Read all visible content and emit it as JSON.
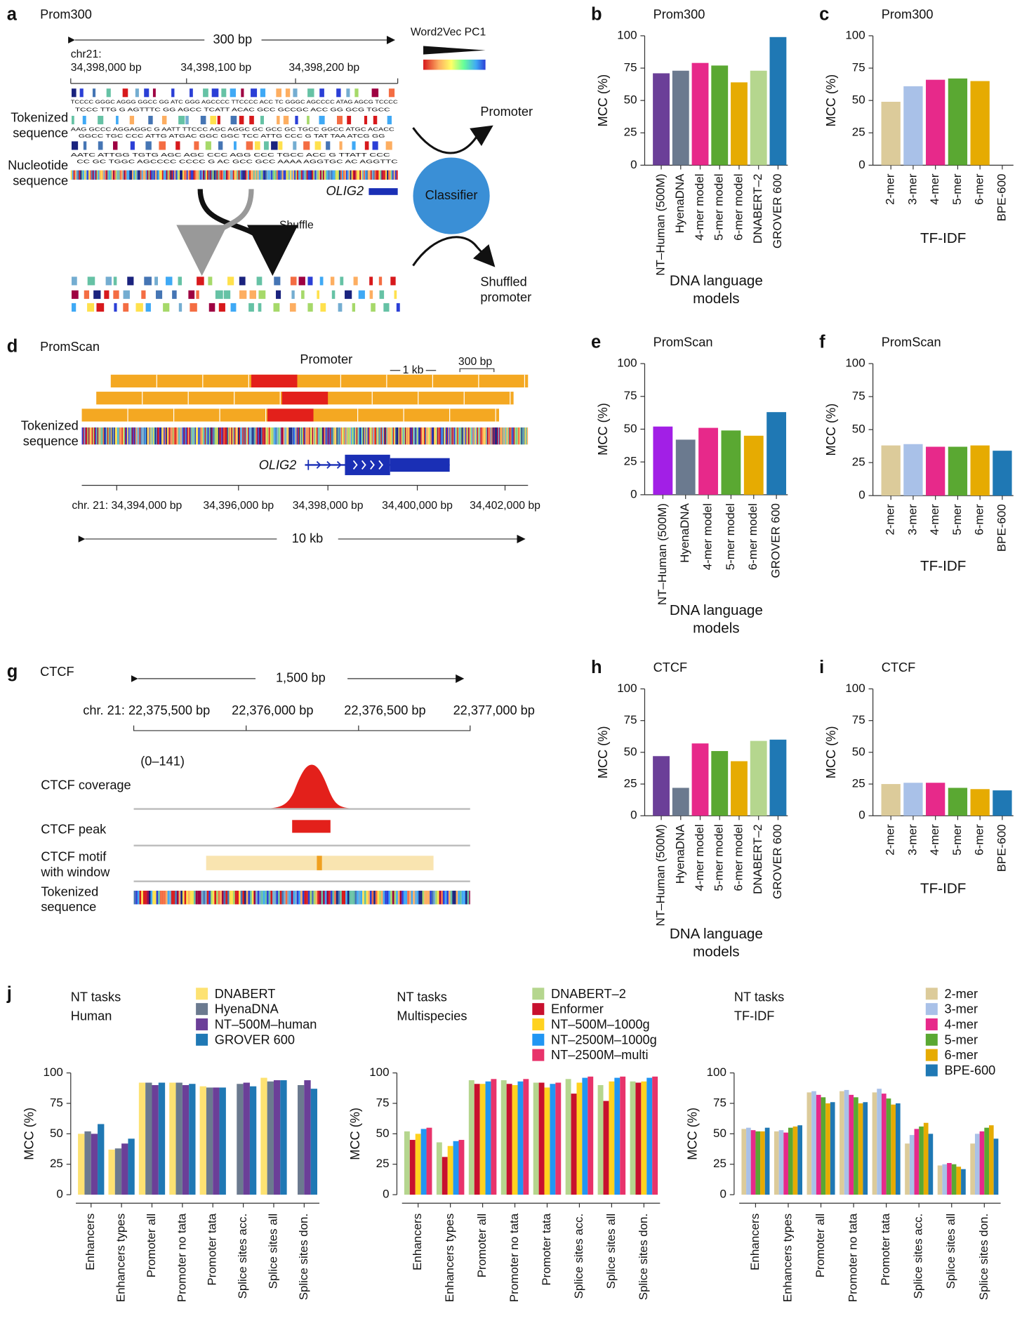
{
  "diagrams": {
    "a": {
      "panel": "a",
      "title": "Prom300",
      "length": "300 bp",
      "colorbar": "Word2Vec PC1",
      "chrom": "chr21:",
      "ticks": [
        "34,398,000 bp",
        "34,398,100 bp",
        "34,398,200 bp"
      ],
      "tokenized": "Tokenized sequence",
      "nucleotide": "Nucleotide sequence",
      "token_rows": [
        "TCCCC GGGC AGGG GGCC GG ATC GGG AGCCCC TTCCCC ACC TC GGGC AGCCCC ATAG AGCG TCCCC",
        "TCCC TTG G AGTTTC GG AGCC TCATT ACAC GCC GCCGC ACC GG GCG TGCC",
        "AAG GCCC AGGAGGC G AATT TTCCC AGC AGGC GC GCC GC TGCC GGCC ATGC ACACC",
        "GGCC TGC CCC ATTG ATGAC GGC GGC TCC ATTG CCC G TAT TAA ATCG GG",
        "AATC ATTGG TGTG AGC AGC CCC AGG CCC TGCC ACC G TTATT CCC",
        "CC GC TGGC AGCCCC CCCC G AC GCC GCC AAAA AGGTGC AC AGGTTC"
      ],
      "gene": "OLIG2",
      "shuffle": "Shuffle",
      "classifier": "Classifier",
      "promoter": "Promoter",
      "shuffled": "Shuffled promoter"
    },
    "d": {
      "panel": "d",
      "title": "PromScan",
      "promoter": "Promoter",
      "kb": "1 kb",
      "bp": "300 bp",
      "tokenized": "Tokenized sequence",
      "gene": "OLIG2",
      "ticks": [
        "chr. 21: 34,394,000 bp",
        "34,396,000 bp",
        "34,398,000 bp",
        "34,400,000 bp",
        "34,402,000 bp"
      ],
      "length": "10 kb"
    },
    "g": {
      "panel": "g",
      "title": "CTCF",
      "length": "1,500 bp",
      "ticks": [
        "chr. 21: 22,375,500 bp",
        "22,376,000 bp",
        "22,376,500 bp",
        "22,377,000 bp"
      ],
      "range": "(0–141)",
      "coverage": "CTCF coverage",
      "peak": "CTCF peak",
      "motif": "CTCF motif with window",
      "tokenized": "Tokenized sequence"
    }
  },
  "chart_data": [
    {
      "type": "bar",
      "panel": "b",
      "title": "Prom300",
      "categories": [
        "NT–Human (500M)",
        "HyenaDNA",
        "4-mer model",
        "5-mer model",
        "6-mer model",
        "DNABERT–2",
        "GROVER 600"
      ],
      "values": [
        71,
        73,
        79,
        77,
        64,
        73,
        99
      ],
      "colors": [
        "#6b3f98",
        "#6b7a8f",
        "#e7298a",
        "#5aa832",
        "#e6ab02",
        "#b5d68e",
        "#1f78b4"
      ],
      "xlabel": "DNA language models",
      "ylabel": "MCC (%)",
      "ylim": [
        0,
        100
      ],
      "yticks": [
        0,
        25,
        50,
        75,
        100
      ]
    },
    {
      "type": "bar",
      "panel": "c",
      "title": "Prom300",
      "categories": [
        "2-mer",
        "3-mer",
        "4-mer",
        "5-mer",
        "6-mer",
        "BPE-600"
      ],
      "values": [
        49,
        61,
        66,
        67,
        65,
        0
      ],
      "colors": [
        "#dccb9a",
        "#a9c1e8",
        "#e7298a",
        "#5aa832",
        "#e6ab02",
        "#1f78b4"
      ],
      "xlabel": "TF-IDF",
      "ylabel": "MCC (%)",
      "ylim": [
        0,
        100
      ],
      "yticks": [
        0,
        25,
        50,
        75,
        100
      ]
    },
    {
      "type": "bar",
      "panel": "e",
      "title": "PromScan",
      "categories": [
        "NT–Human (500M)",
        "HyenaDNA",
        "4-mer model",
        "5-mer model",
        "6-mer model",
        "GROVER 600"
      ],
      "values": [
        52,
        42,
        51,
        49,
        45,
        63
      ],
      "colors": [
        "#a21fe6",
        "#6b7a8f",
        "#e7298a",
        "#5aa832",
        "#e6ab02",
        "#1f78b4"
      ],
      "xlabel": "DNA language models",
      "ylabel": "MCC (%)",
      "ylim": [
        0,
        100
      ],
      "yticks": [
        0,
        25,
        50,
        75,
        100
      ]
    },
    {
      "type": "bar",
      "panel": "f",
      "title": "PromScan",
      "categories": [
        "2-mer",
        "3-mer",
        "4-mer",
        "5-mer",
        "6-mer",
        "BPE-600"
      ],
      "values": [
        38,
        39,
        37,
        37,
        38,
        34
      ],
      "colors": [
        "#dccb9a",
        "#a9c1e8",
        "#e7298a",
        "#5aa832",
        "#e6ab02",
        "#1f78b4"
      ],
      "xlabel": "TF-IDF",
      "ylabel": "MCC (%)",
      "ylim": [
        0,
        100
      ],
      "yticks": [
        0,
        25,
        50,
        75,
        100
      ]
    },
    {
      "type": "bar",
      "panel": "h",
      "title": "CTCF",
      "categories": [
        "NT–Human (500M)",
        "HyenaDNA",
        "4-mer model",
        "5-mer model",
        "6-mer model",
        "DNABERT–2",
        "GROVER 600"
      ],
      "values": [
        47,
        22,
        57,
        51,
        43,
        59,
        60
      ],
      "colors": [
        "#6b3f98",
        "#6b7a8f",
        "#e7298a",
        "#5aa832",
        "#e6ab02",
        "#b5d68e",
        "#1f78b4"
      ],
      "xlabel": "DNA language models",
      "ylabel": "MCC (%)",
      "ylim": [
        0,
        100
      ],
      "yticks": [
        0,
        25,
        50,
        75,
        100
      ]
    },
    {
      "type": "bar",
      "panel": "i",
      "title": "CTCF",
      "categories": [
        "2-mer",
        "3-mer",
        "4-mer",
        "5-mer",
        "6-mer",
        "BPE-600"
      ],
      "values": [
        25,
        26,
        26,
        22,
        21,
        20
      ],
      "colors": [
        "#dccb9a",
        "#a9c1e8",
        "#e7298a",
        "#5aa832",
        "#e6ab02",
        "#1f78b4"
      ],
      "xlabel": "TF-IDF",
      "ylabel": "MCC (%)",
      "ylim": [
        0,
        100
      ],
      "yticks": [
        0,
        25,
        50,
        75,
        100
      ]
    },
    {
      "type": "grouped_bar",
      "panel": "j",
      "title": "NT tasks",
      "subtitle": "Human",
      "categories": [
        "Enhancers",
        "Enhancers types",
        "Promoter all",
        "Promoter no tata",
        "Promoter tata",
        "Splice sites acc.",
        "Splice sites all",
        "Splice sites don."
      ],
      "series": [
        {
          "name": "DNABERT",
          "color": "#fde272",
          "values": [
            50,
            37,
            92,
            92,
            89,
            null,
            96,
            null
          ]
        },
        {
          "name": "HyenaDNA",
          "color": "#6b7a8f",
          "values": [
            52,
            38,
            92,
            92,
            88,
            91,
            93,
            90
          ]
        },
        {
          "name": "NT–500M–human",
          "color": "#6b3f98",
          "values": [
            50,
            42,
            90,
            90,
            88,
            92,
            94,
            94
          ]
        },
        {
          "name": "GROVER 600",
          "color": "#1f78b4",
          "values": [
            58,
            46,
            92,
            91,
            88,
            89,
            94,
            87
          ]
        }
      ],
      "ylabel": "MCC (%)",
      "ylim": [
        0,
        100
      ],
      "yticks": [
        0,
        25,
        50,
        75,
        100
      ]
    },
    {
      "type": "grouped_bar",
      "title": "NT tasks",
      "subtitle": "Multispecies",
      "categories": [
        "Enhancers",
        "Enhancers types",
        "Promoter all",
        "Promoter no tata",
        "Promoter tata",
        "Splice sites acc.",
        "Splice sites all",
        "Splice sites don."
      ],
      "series": [
        {
          "name": "DNABERT–2",
          "color": "#b5d68e",
          "values": [
            52,
            43,
            94,
            94,
            92,
            95,
            90,
            93
          ]
        },
        {
          "name": "Enformer",
          "color": "#c8102e",
          "values": [
            45,
            31,
            91,
            91,
            92,
            83,
            77,
            92
          ]
        },
        {
          "name": "NT–500M–1000g",
          "color": "#ffd21f",
          "values": [
            50,
            40,
            91,
            90,
            88,
            92,
            93,
            93
          ]
        },
        {
          "name": "NT–2500M–1000g",
          "color": "#2196f3",
          "values": [
            54,
            44,
            93,
            93,
            91,
            96,
            96,
            96
          ]
        },
        {
          "name": "NT–2500M–multi",
          "color": "#e8336b",
          "values": [
            55,
            45,
            95,
            95,
            92,
            97,
            97,
            97
          ]
        }
      ],
      "ylabel": "MCC (%)",
      "ylim": [
        0,
        100
      ],
      "yticks": [
        0,
        25,
        50,
        75,
        100
      ]
    },
    {
      "type": "grouped_bar",
      "title": "NT tasks",
      "subtitle": "TF-IDF",
      "categories": [
        "Enhancers",
        "Enhancers types",
        "Promoter all",
        "Promoter no tata",
        "Promoter tata",
        "Splice sites acc.",
        "Splice sites all",
        "Splice sites don."
      ],
      "series": [
        {
          "name": "2-mer",
          "color": "#dccb9a",
          "values": [
            54,
            52,
            84,
            85,
            84,
            42,
            24,
            42
          ]
        },
        {
          "name": "3-mer",
          "color": "#a9c1e8",
          "values": [
            55,
            53,
            85,
            86,
            87,
            49,
            25,
            50
          ]
        },
        {
          "name": "4-mer",
          "color": "#e7298a",
          "values": [
            53,
            51,
            82,
            82,
            83,
            54,
            26,
            52
          ]
        },
        {
          "name": "5-mer",
          "color": "#5aa832",
          "values": [
            52,
            55,
            80,
            80,
            79,
            56,
            25,
            55
          ]
        },
        {
          "name": "6-mer",
          "color": "#e6ab02",
          "values": [
            52,
            56,
            75,
            75,
            74,
            59,
            23,
            57
          ]
        },
        {
          "name": "BPE-600",
          "color": "#1f78b4",
          "values": [
            55,
            57,
            76,
            76,
            75,
            50,
            21,
            46
          ]
        }
      ],
      "ylabel": "MCC (%)",
      "ylim": [
        0,
        100
      ],
      "yticks": [
        0,
        25,
        50,
        75,
        100
      ]
    }
  ]
}
